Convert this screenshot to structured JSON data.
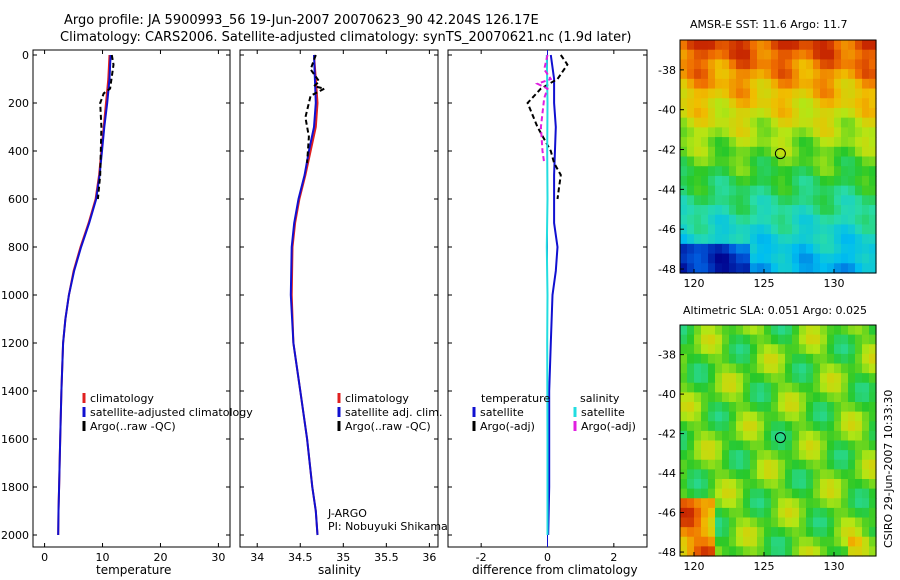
{
  "header": {
    "line1": "Argo profile: JA 5900993_56 19-Jun-2007 20070623_90 42.204S 126.17E",
    "line2": "Climatology: CARS2006. Satellite-adjusted climatology: synTS_20070621.nc (1.9d later)"
  },
  "colors": {
    "climatology": "#e02020",
    "satellite": "#1010d0",
    "argo": "#000000",
    "sat_salinity": "#22dde0",
    "argo_salinity": "#e020e0"
  },
  "chart_data": [
    {
      "type": "line",
      "id": "temperature",
      "xlabel": "temperature",
      "xlim": [
        -2,
        32
      ],
      "ylim": [
        0,
        2050
      ],
      "xticks": [
        0,
        10,
        20,
        30
      ],
      "yticks": [
        0,
        200,
        400,
        600,
        800,
        1000,
        1200,
        1400,
        1600,
        1800,
        2000
      ],
      "series": [
        {
          "name": "climatology",
          "color": "#e02020",
          "dash": "",
          "x": [
            11.2,
            11.0,
            10.6,
            10.2,
            9.8,
            9.4,
            8.8,
            7.6,
            6.2,
            5.0,
            4.2,
            3.6,
            3.2,
            2.9,
            2.7,
            2.5,
            2.4,
            2.35
          ],
          "y": [
            0,
            100,
            200,
            300,
            400,
            500,
            600,
            700,
            800,
            900,
            1000,
            1100,
            1200,
            1400,
            1600,
            1800,
            1900,
            2000
          ]
        },
        {
          "name": "satellite-adjusted climatology",
          "color": "#1010d0",
          "dash": "",
          "x": [
            11.4,
            11.2,
            10.8,
            10.3,
            9.9,
            9.5,
            8.9,
            7.7,
            6.3,
            5.1,
            4.2,
            3.6,
            3.2,
            2.9,
            2.7,
            2.5,
            2.4,
            2.35
          ],
          "y": [
            0,
            100,
            200,
            300,
            400,
            500,
            600,
            700,
            800,
            900,
            1000,
            1100,
            1200,
            1400,
            1600,
            1800,
            1900,
            2000
          ]
        },
        {
          "name": "Argo(..raw -QC)",
          "color": "#000000",
          "dash": "5,3",
          "x": [
            11.6,
            11.9,
            11.3,
            10.2,
            9.6,
            9.8,
            9.7,
            9.6,
            9.2
          ],
          "y": [
            0,
            40,
            140,
            160,
            200,
            300,
            400,
            500,
            600
          ]
        }
      ],
      "legend": [
        "climatology",
        "satellite-adjusted climatology",
        "Argo(..raw -QC)"
      ]
    },
    {
      "type": "line",
      "id": "salinity",
      "xlabel": "salinity",
      "xlim": [
        33.8,
        36.1
      ],
      "ylim": [
        0,
        2050
      ],
      "xticks": [
        34,
        34.5,
        35,
        35.5,
        36
      ],
      "yticks": [
        0,
        200,
        400,
        600,
        800,
        1000,
        1200,
        1400,
        1600,
        1800,
        2000
      ],
      "series": [
        {
          "name": "climatology",
          "color": "#e02020",
          "dash": "",
          "x": [
            34.66,
            34.68,
            34.7,
            34.68,
            34.62,
            34.56,
            34.49,
            34.44,
            34.41,
            34.4,
            34.42,
            34.5,
            34.58,
            34.64,
            34.68,
            34.7
          ],
          "y": [
            0,
            100,
            200,
            300,
            400,
            500,
            600,
            700,
            800,
            1000,
            1200,
            1400,
            1600,
            1800,
            1900,
            2000
          ]
        },
        {
          "name": "satellite adj. clim.",
          "color": "#1010d0",
          "dash": "",
          "x": [
            34.66,
            34.67,
            34.68,
            34.66,
            34.6,
            34.55,
            34.48,
            34.43,
            34.4,
            34.39,
            34.42,
            34.5,
            34.58,
            34.64,
            34.68,
            34.7
          ],
          "y": [
            0,
            100,
            200,
            300,
            400,
            500,
            600,
            700,
            800,
            1000,
            1200,
            1400,
            1600,
            1800,
            1900,
            2000
          ]
        },
        {
          "name": "Argo(..raw -QC)",
          "color": "#000000",
          "dash": "5,3",
          "x": [
            34.68,
            34.62,
            34.72,
            34.66,
            34.78,
            34.62,
            34.56,
            34.6,
            34.58
          ],
          "y": [
            0,
            60,
            110,
            130,
            140,
            170,
            260,
            340,
            450
          ]
        }
      ],
      "legend": [
        "climatology",
        "satellite adj. clim.",
        "Argo(..raw -QC)"
      ],
      "annotation": [
        "J-ARGO",
        "PI: Nobuyuki Shikama"
      ]
    },
    {
      "type": "line",
      "id": "difference",
      "xlabel": "difference from climatology",
      "xlim": [
        -3,
        3
      ],
      "ylim": [
        0,
        2050
      ],
      "xticks": [
        -2,
        0,
        2
      ],
      "yticks": [
        0,
        200,
        400,
        600,
        800,
        1000,
        1200,
        1400,
        1600,
        1800,
        2000
      ],
      "series": [
        {
          "name": "temperature satellite",
          "color": "#1010d0",
          "dash": "",
          "x": [
            0.1,
            0.2,
            0.2,
            0.25,
            0.2,
            0.2,
            0.3,
            0.25,
            0.15,
            0.1,
            0.05,
            0.05,
            0.05,
            0.02
          ],
          "y": [
            0,
            100,
            200,
            300,
            500,
            700,
            800,
            900,
            1000,
            1200,
            1400,
            1600,
            1800,
            2000
          ]
        },
        {
          "name": "temperature Argo(-adj)",
          "color": "#000000",
          "dash": "5,3",
          "x": [
            0.4,
            0.6,
            0.3,
            -0.2,
            -0.6,
            -0.3,
            0.1,
            0.2,
            0.4,
            0.35,
            0.3
          ],
          "y": [
            0,
            40,
            100,
            140,
            200,
            300,
            400,
            450,
            500,
            550,
            600
          ]
        },
        {
          "name": "salinity satellite",
          "color": "#22dde0",
          "dash": "",
          "x": [
            -0.02,
            0.0,
            -0.01,
            0.0,
            -0.02,
            0.0,
            -0.01,
            0.0,
            0.0
          ],
          "y": [
            0,
            200,
            400,
            600,
            800,
            1000,
            1200,
            1600,
            2000
          ]
        },
        {
          "name": "salinity Argo(-adj)",
          "color": "#e020e0",
          "dash": "5,3",
          "x": [
            0.0,
            -0.1,
            0.1,
            -0.3,
            0.0,
            -0.1,
            -0.2,
            -0.15,
            -0.1
          ],
          "y": [
            0,
            60,
            100,
            120,
            140,
            180,
            300,
            400,
            450
          ]
        }
      ],
      "legend": {
        "temperature_header": "temperature",
        "salinity_header": "salinity",
        "temperature_items": [
          "satellite",
          "Argo(-adj)"
        ],
        "salinity_items": [
          "satellite",
          "Argo(-adj)"
        ]
      }
    },
    {
      "type": "heatmap",
      "id": "sst_map",
      "title": "AMSR-E SST: 11.6  Argo: 11.7",
      "xlim": [
        119,
        133
      ],
      "ylim": [
        -48.2,
        -36.5
      ],
      "xticks": [
        120,
        125,
        130
      ],
      "yticks": [
        -38,
        -40,
        -42,
        -44,
        -46,
        -48
      ],
      "marker": {
        "lon": 126.17,
        "lat": -42.204
      }
    },
    {
      "type": "heatmap",
      "id": "sla_map",
      "title": "Altimetric SLA: 0.051  Argo: 0.025",
      "xlim": [
        119,
        133
      ],
      "ylim": [
        -48.2,
        -36.5
      ],
      "xticks": [
        120,
        125,
        130
      ],
      "yticks": [
        -38,
        -40,
        -42,
        -44,
        -46,
        -48
      ],
      "marker": {
        "lon": 126.17,
        "lat": -42.204
      }
    }
  ],
  "side_label": "CSIRO 29-Jun-2007 10:33:30"
}
